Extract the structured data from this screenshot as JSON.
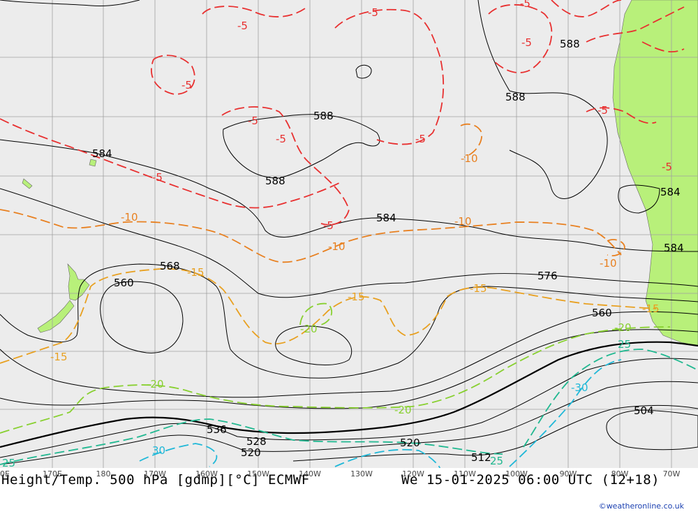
{
  "title": {
    "left": "Height/Temp. 500 hPa [gdmp][°C] ECMWF",
    "right": "We 15-01-2025 06:00 UTC (12+18)"
  },
  "credit": "©weatheronline.co.uk",
  "longitudes": [
    "160E",
    "170E",
    "180",
    "170W",
    "160W",
    "150W",
    "140W",
    "130W",
    "120W",
    "110W",
    "100W",
    "90W",
    "80W",
    "70W"
  ],
  "height_labels": [
    "588",
    "588",
    "588",
    "584",
    "588",
    "584",
    "584",
    "584",
    "568",
    "560",
    "576",
    "560",
    "536",
    "528",
    "520",
    "520",
    "512",
    "504"
  ],
  "temp_labels": {
    "minus5": [
      "-5",
      "-5",
      "-5",
      "-5",
      "-5",
      "-5",
      "-5",
      "-5",
      "-5",
      "-5",
      "-5",
      "-5"
    ],
    "minus10": [
      "-10",
      "-10",
      "-10",
      "-10",
      "-10"
    ],
    "minus15": [
      "-15",
      "-15",
      "-15",
      "-15",
      "-15"
    ],
    "minus20": [
      "-20",
      "-20",
      "-20",
      "-20"
    ],
    "minus25": [
      "25",
      "25",
      "25"
    ],
    "minus30": [
      "-30",
      "30"
    ]
  },
  "colors": {
    "ocean": "#ececec",
    "land": "#b8f07a",
    "grid": "#a0a0a0",
    "height_contour": "#000000",
    "t_minus5": "#e83030",
    "t_minus10": "#e88020",
    "t_minus15": "#e8a020",
    "t_minus20": "#88d030",
    "t_minus25": "#20b890",
    "t_minus30": "#20b8d8"
  }
}
